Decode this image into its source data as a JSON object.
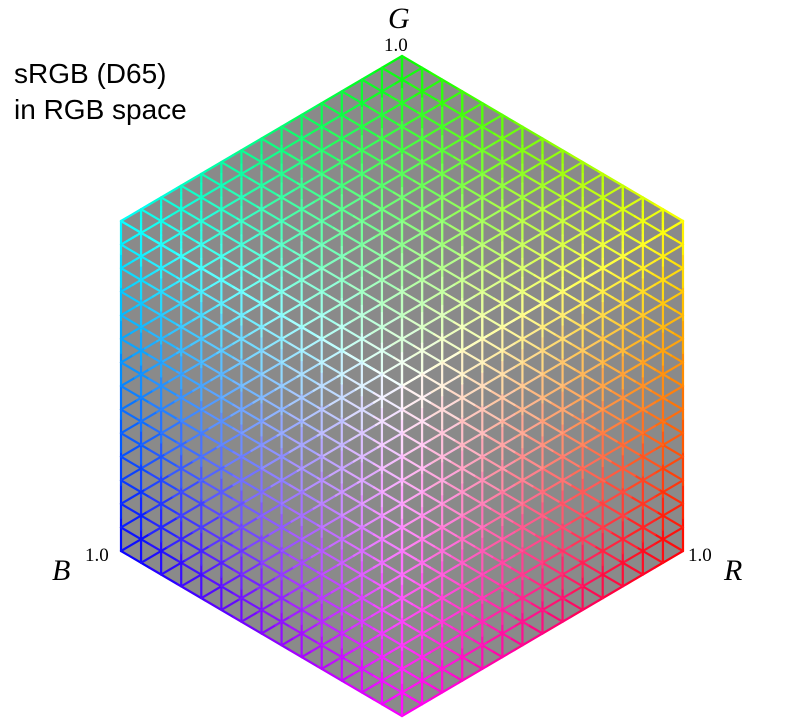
{
  "title": {
    "line1": "sRGB (D65)",
    "line2": "in RGB space"
  },
  "axes": {
    "g": {
      "letter": "G",
      "max_label": "1.0"
    },
    "b": {
      "letter": "B",
      "max_label": "1.0"
    },
    "r": {
      "letter": "R",
      "max_label": "1.0"
    }
  },
  "colors": {
    "face_fill": "#8a8a8a",
    "background": "#ffffff",
    "text": "#000000"
  },
  "grid": {
    "divisions_per_axis": 14
  }
}
